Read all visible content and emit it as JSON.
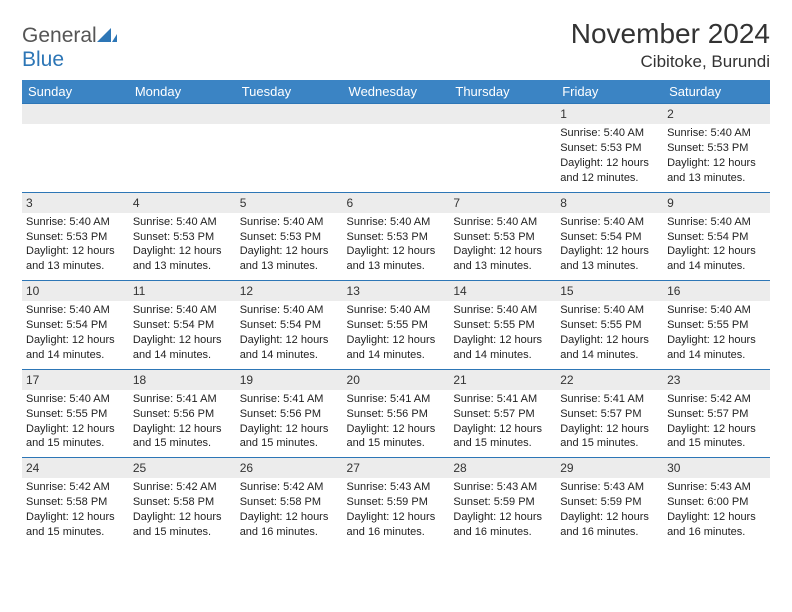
{
  "logo": {
    "word1": "General",
    "word2": "Blue"
  },
  "title": "November 2024",
  "location": "Cibitoke, Burundi",
  "colors": {
    "header_bg": "#3b84c4",
    "border": "#2d76b6",
    "daynum_bg": "#ececec",
    "logo_blue": "#2d76b6",
    "text": "#222222"
  },
  "day_headers": [
    "Sunday",
    "Monday",
    "Tuesday",
    "Wednesday",
    "Thursday",
    "Friday",
    "Saturday"
  ],
  "weeks": [
    [
      {
        "day": "",
        "sunrise": "",
        "sunset": "",
        "daylight": ""
      },
      {
        "day": "",
        "sunrise": "",
        "sunset": "",
        "daylight": ""
      },
      {
        "day": "",
        "sunrise": "",
        "sunset": "",
        "daylight": ""
      },
      {
        "day": "",
        "sunrise": "",
        "sunset": "",
        "daylight": ""
      },
      {
        "day": "",
        "sunrise": "",
        "sunset": "",
        "daylight": ""
      },
      {
        "day": "1",
        "sunrise": "Sunrise: 5:40 AM",
        "sunset": "Sunset: 5:53 PM",
        "daylight": "Daylight: 12 hours and 12 minutes."
      },
      {
        "day": "2",
        "sunrise": "Sunrise: 5:40 AM",
        "sunset": "Sunset: 5:53 PM",
        "daylight": "Daylight: 12 hours and 13 minutes."
      }
    ],
    [
      {
        "day": "3",
        "sunrise": "Sunrise: 5:40 AM",
        "sunset": "Sunset: 5:53 PM",
        "daylight": "Daylight: 12 hours and 13 minutes."
      },
      {
        "day": "4",
        "sunrise": "Sunrise: 5:40 AM",
        "sunset": "Sunset: 5:53 PM",
        "daylight": "Daylight: 12 hours and 13 minutes."
      },
      {
        "day": "5",
        "sunrise": "Sunrise: 5:40 AM",
        "sunset": "Sunset: 5:53 PM",
        "daylight": "Daylight: 12 hours and 13 minutes."
      },
      {
        "day": "6",
        "sunrise": "Sunrise: 5:40 AM",
        "sunset": "Sunset: 5:53 PM",
        "daylight": "Daylight: 12 hours and 13 minutes."
      },
      {
        "day": "7",
        "sunrise": "Sunrise: 5:40 AM",
        "sunset": "Sunset: 5:53 PM",
        "daylight": "Daylight: 12 hours and 13 minutes."
      },
      {
        "day": "8",
        "sunrise": "Sunrise: 5:40 AM",
        "sunset": "Sunset: 5:54 PM",
        "daylight": "Daylight: 12 hours and 13 minutes."
      },
      {
        "day": "9",
        "sunrise": "Sunrise: 5:40 AM",
        "sunset": "Sunset: 5:54 PM",
        "daylight": "Daylight: 12 hours and 14 minutes."
      }
    ],
    [
      {
        "day": "10",
        "sunrise": "Sunrise: 5:40 AM",
        "sunset": "Sunset: 5:54 PM",
        "daylight": "Daylight: 12 hours and 14 minutes."
      },
      {
        "day": "11",
        "sunrise": "Sunrise: 5:40 AM",
        "sunset": "Sunset: 5:54 PM",
        "daylight": "Daylight: 12 hours and 14 minutes."
      },
      {
        "day": "12",
        "sunrise": "Sunrise: 5:40 AM",
        "sunset": "Sunset: 5:54 PM",
        "daylight": "Daylight: 12 hours and 14 minutes."
      },
      {
        "day": "13",
        "sunrise": "Sunrise: 5:40 AM",
        "sunset": "Sunset: 5:55 PM",
        "daylight": "Daylight: 12 hours and 14 minutes."
      },
      {
        "day": "14",
        "sunrise": "Sunrise: 5:40 AM",
        "sunset": "Sunset: 5:55 PM",
        "daylight": "Daylight: 12 hours and 14 minutes."
      },
      {
        "day": "15",
        "sunrise": "Sunrise: 5:40 AM",
        "sunset": "Sunset: 5:55 PM",
        "daylight": "Daylight: 12 hours and 14 minutes."
      },
      {
        "day": "16",
        "sunrise": "Sunrise: 5:40 AM",
        "sunset": "Sunset: 5:55 PM",
        "daylight": "Daylight: 12 hours and 14 minutes."
      }
    ],
    [
      {
        "day": "17",
        "sunrise": "Sunrise: 5:40 AM",
        "sunset": "Sunset: 5:55 PM",
        "daylight": "Daylight: 12 hours and 15 minutes."
      },
      {
        "day": "18",
        "sunrise": "Sunrise: 5:41 AM",
        "sunset": "Sunset: 5:56 PM",
        "daylight": "Daylight: 12 hours and 15 minutes."
      },
      {
        "day": "19",
        "sunrise": "Sunrise: 5:41 AM",
        "sunset": "Sunset: 5:56 PM",
        "daylight": "Daylight: 12 hours and 15 minutes."
      },
      {
        "day": "20",
        "sunrise": "Sunrise: 5:41 AM",
        "sunset": "Sunset: 5:56 PM",
        "daylight": "Daylight: 12 hours and 15 minutes."
      },
      {
        "day": "21",
        "sunrise": "Sunrise: 5:41 AM",
        "sunset": "Sunset: 5:57 PM",
        "daylight": "Daylight: 12 hours and 15 minutes."
      },
      {
        "day": "22",
        "sunrise": "Sunrise: 5:41 AM",
        "sunset": "Sunset: 5:57 PM",
        "daylight": "Daylight: 12 hours and 15 minutes."
      },
      {
        "day": "23",
        "sunrise": "Sunrise: 5:42 AM",
        "sunset": "Sunset: 5:57 PM",
        "daylight": "Daylight: 12 hours and 15 minutes."
      }
    ],
    [
      {
        "day": "24",
        "sunrise": "Sunrise: 5:42 AM",
        "sunset": "Sunset: 5:58 PM",
        "daylight": "Daylight: 12 hours and 15 minutes."
      },
      {
        "day": "25",
        "sunrise": "Sunrise: 5:42 AM",
        "sunset": "Sunset: 5:58 PM",
        "daylight": "Daylight: 12 hours and 15 minutes."
      },
      {
        "day": "26",
        "sunrise": "Sunrise: 5:42 AM",
        "sunset": "Sunset: 5:58 PM",
        "daylight": "Daylight: 12 hours and 16 minutes."
      },
      {
        "day": "27",
        "sunrise": "Sunrise: 5:43 AM",
        "sunset": "Sunset: 5:59 PM",
        "daylight": "Daylight: 12 hours and 16 minutes."
      },
      {
        "day": "28",
        "sunrise": "Sunrise: 5:43 AM",
        "sunset": "Sunset: 5:59 PM",
        "daylight": "Daylight: 12 hours and 16 minutes."
      },
      {
        "day": "29",
        "sunrise": "Sunrise: 5:43 AM",
        "sunset": "Sunset: 5:59 PM",
        "daylight": "Daylight: 12 hours and 16 minutes."
      },
      {
        "day": "30",
        "sunrise": "Sunrise: 5:43 AM",
        "sunset": "Sunset: 6:00 PM",
        "daylight": "Daylight: 12 hours and 16 minutes."
      }
    ]
  ]
}
